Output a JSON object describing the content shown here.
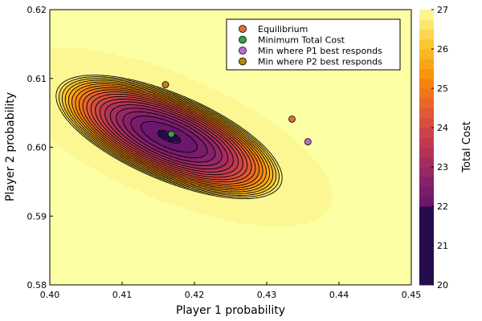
{
  "chart_data": {
    "type": "contour",
    "xlabel": "Player 1 probability",
    "ylabel": "Player 2 probability",
    "colorbar_label": "Total Cost",
    "xlim": [
      0.4,
      0.45
    ],
    "ylim": [
      0.58,
      0.62
    ],
    "x_ticks": [
      "0.40",
      "0.41",
      "0.42",
      "0.43",
      "0.44",
      "0.45"
    ],
    "y_ticks": [
      "0.58",
      "0.59",
      "0.60",
      "0.61",
      "0.62"
    ],
    "colorbar_range": [
      20,
      27
    ],
    "colorbar_ticks": [
      "20",
      "21",
      "22",
      "23",
      "24",
      "25",
      "26",
      "27"
    ],
    "colormap": "inferno",
    "contour_levels": [
      22.0,
      22.25,
      22.5,
      22.75,
      23.0,
      23.25,
      23.5,
      23.75,
      24.0,
      24.25,
      24.5,
      24.75,
      25.0,
      25.25,
      25.5,
      25.75,
      26.0,
      26.25,
      26.5,
      26.75
    ],
    "surface_minimum": {
      "x": 0.4165,
      "y": 0.6015,
      "value": 21.95
    },
    "legend_position": "top-right",
    "points": [
      {
        "name": "Equilibrium",
        "x": 0.4335,
        "y": 0.6041,
        "color": "#e26d36"
      },
      {
        "name": "Minimum Total Cost",
        "x": 0.4168,
        "y": 0.6019,
        "color": "#3aa04b"
      },
      {
        "name": "Min where P1 best responds",
        "x": 0.4357,
        "y": 0.6008,
        "color": "#b470d0"
      },
      {
        "name": "Min where P2 best responds",
        "x": 0.416,
        "y": 0.6091,
        "color": "#b8860b"
      }
    ]
  }
}
